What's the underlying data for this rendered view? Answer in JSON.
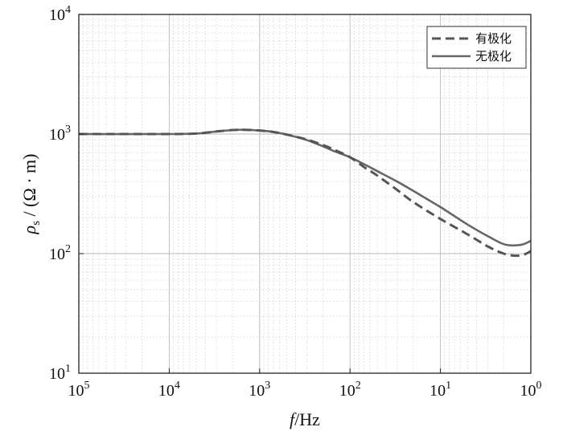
{
  "chart_data": {
    "type": "line",
    "title": "",
    "xlabel_var": "f",
    "xlabel_unit": "/Hz",
    "ylabel_var": "ρ",
    "ylabel_sub": "s",
    "ylabel_unit": " / (Ω · m)",
    "x_scale": "log",
    "y_scale": "log",
    "x_reversed": true,
    "xlim": [
      100000,
      1
    ],
    "ylim": [
      10,
      10000
    ],
    "grid": true,
    "legend_position": "top-right",
    "x_ticks": [
      {
        "value": 100000,
        "base": "10",
        "exp": "5"
      },
      {
        "value": 10000,
        "base": "10",
        "exp": "4"
      },
      {
        "value": 1000,
        "base": "10",
        "exp": "3"
      },
      {
        "value": 100,
        "base": "10",
        "exp": "2"
      },
      {
        "value": 10,
        "base": "10",
        "exp": "1"
      },
      {
        "value": 1,
        "base": "10",
        "exp": "0"
      }
    ],
    "y_ticks": [
      {
        "value": 10,
        "base": "10",
        "exp": "1"
      },
      {
        "value": 100,
        "base": "10",
        "exp": "2"
      },
      {
        "value": 1000,
        "base": "10",
        "exp": "3"
      },
      {
        "value": 10000,
        "base": "10",
        "exp": "4"
      }
    ],
    "series": [
      {
        "name": "有极化",
        "style": "dashed",
        "color": "#555555",
        "x": [
          100000,
          10000,
          5000,
          3000,
          2000,
          1500,
          1000,
          700,
          500,
          300,
          200,
          150,
          100,
          70,
          50,
          30,
          20,
          10,
          5,
          3,
          2,
          1.5,
          1.2,
          1
        ],
        "y": [
          1000,
          1000,
          1010,
          1050,
          1080,
          1085,
          1070,
          1040,
          990,
          900,
          810,
          740,
          640,
          530,
          450,
          340,
          270,
          195,
          145,
          115,
          100,
          96,
          98,
          105
        ]
      },
      {
        "name": "无极化",
        "style": "solid",
        "color": "#666666",
        "x": [
          100000,
          10000,
          5000,
          3000,
          2000,
          1500,
          1000,
          700,
          500,
          300,
          200,
          150,
          100,
          70,
          50,
          30,
          20,
          10,
          5,
          3,
          2,
          1.5,
          1.2,
          1
        ],
        "y": [
          1000,
          1000,
          1010,
          1050,
          1080,
          1085,
          1070,
          1040,
          990,
          890,
          790,
          720,
          640,
          560,
          490,
          400,
          335,
          245,
          175,
          140,
          120,
          117,
          120,
          128
        ]
      }
    ]
  }
}
